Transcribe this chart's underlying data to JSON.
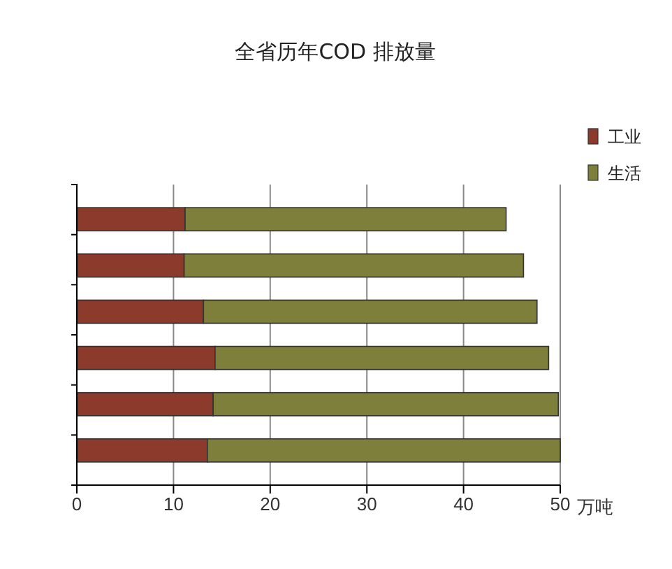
{
  "chart_data": {
    "type": "bar",
    "title": "全省历年COD 排放量",
    "orientation": "horizontal",
    "stacked": true,
    "categories": [
      null,
      null,
      null,
      null,
      null,
      null
    ],
    "series": [
      {
        "name": "工业",
        "color": "#8b3a2c",
        "values": [
          11.2,
          11.1,
          13.1,
          14.3,
          14.1,
          13.5
        ]
      },
      {
        "name": "生活",
        "color": "#7f7f3c",
        "values": [
          33.2,
          35.1,
          34.5,
          34.5,
          35.7,
          36.5
        ]
      }
    ],
    "xlim": [
      0,
      50
    ],
    "xticks": [
      0,
      10,
      20,
      30,
      40,
      50
    ],
    "xlabel": "万吨",
    "grid": "x",
    "legend": "top right"
  }
}
